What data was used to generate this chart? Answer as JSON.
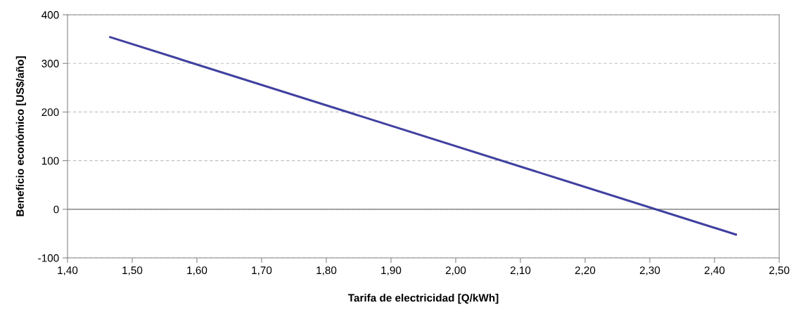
{
  "chart_data": {
    "type": "line",
    "xlabel": "Tarifa de electricidad [Q/kWh]",
    "ylabel": "Beneficio económico [US$/año]",
    "x": [
      1.466,
      2.433
    ],
    "series": [
      {
        "color": "#4040a0",
        "values": [
          354,
          -52
        ]
      }
    ],
    "xlim": [
      1.4,
      2.5
    ],
    "xticks": [
      {
        "value": 1.4,
        "label": "1,40"
      },
      {
        "value": 1.5,
        "label": "1,50"
      },
      {
        "value": 1.6,
        "label": "1,60"
      },
      {
        "value": 1.7,
        "label": "1,70"
      },
      {
        "value": 1.8,
        "label": "1,80"
      },
      {
        "value": 1.9,
        "label": "1,90"
      },
      {
        "value": 2.0,
        "label": "2,00"
      },
      {
        "value": 2.1,
        "label": "2,10"
      },
      {
        "value": 2.2,
        "label": "2,20"
      },
      {
        "value": 2.3,
        "label": "2,30"
      },
      {
        "value": 2.4,
        "label": "2,40"
      },
      {
        "value": 2.5,
        "label": "2,50"
      }
    ],
    "ylim": [
      -100,
      400
    ],
    "yticks": [
      -100,
      0,
      100,
      200,
      300,
      400
    ],
    "grid": "y",
    "line_style": "solid",
    "marker": "none",
    "ref_lines": [
      {
        "axis": "y",
        "value": 0,
        "color": "#868686",
        "line_style": "solid"
      }
    ]
  }
}
